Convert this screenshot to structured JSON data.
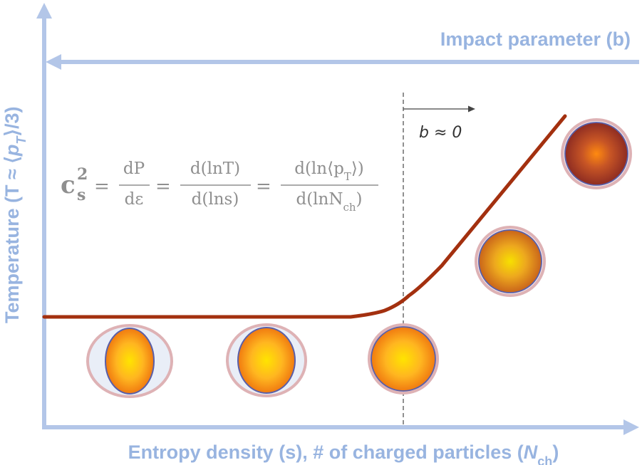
{
  "axes": {
    "x_label_prefix": "Entropy density (s), # of charged particles (",
    "x_label_var": "N",
    "x_label_sub": "ch",
    "x_label_suffix": ")",
    "y_label_prefix": "Temperature (T ≈ ⟨",
    "y_label_var": "p",
    "y_label_sub": "T",
    "y_label_suffix": "⟩/3)",
    "top_label": "Impact parameter (b)"
  },
  "annotation": {
    "b_zero": "b ≈ 0"
  },
  "formula": {
    "lhs_base": "c",
    "lhs_sup": "2",
    "lhs_sub": "s",
    "eq": "=",
    "frac1_num": "dP",
    "frac1_den": "dε",
    "frac2_num": "d(lnT)",
    "frac2_den": "d(lns)",
    "frac3_num_prefix": "d(ln⟨p",
    "frac3_num_sub": "T",
    "frac3_num_suffix": "⟩)",
    "frac3_den_prefix": "d(lnN",
    "frac3_den_sub": "ch",
    "frac3_den_suffix": ")"
  },
  "colors": {
    "axis": "#b3c6e8",
    "curve": "#a3300f",
    "formula": "#8f8f8f",
    "dashed": "#555555"
  }
}
